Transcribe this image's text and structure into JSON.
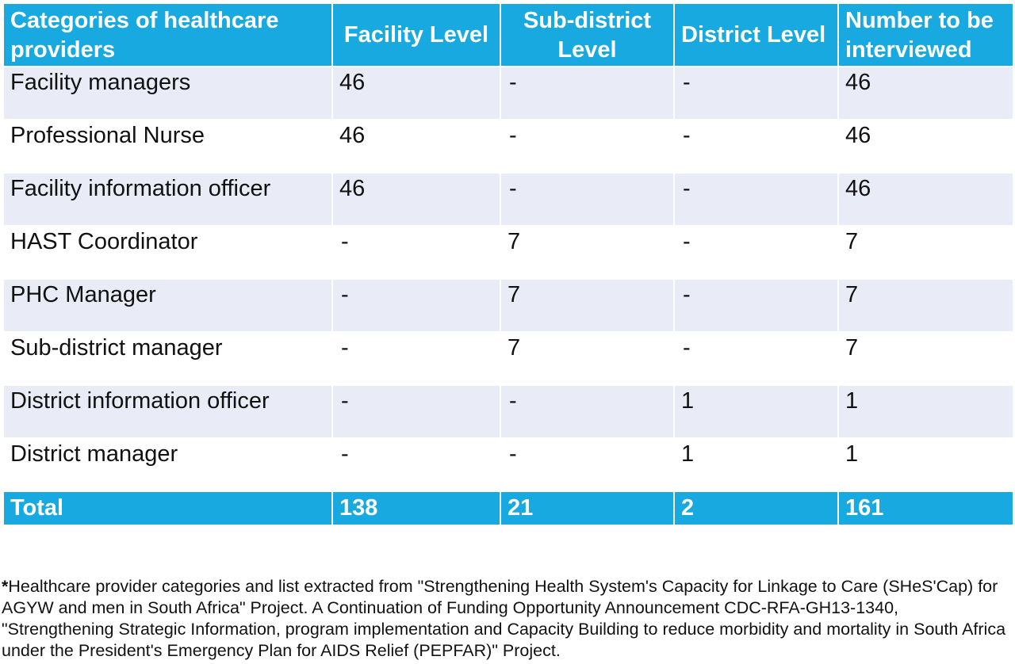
{
  "table": {
    "headers": [
      "Categories of healthcare providers",
      "Facility Level",
      "Sub-district Level",
      "District Level",
      "Number to be interviewed"
    ],
    "rows": [
      [
        "Facility managers",
        "46",
        "-",
        "-",
        "46"
      ],
      [
        "Professional Nurse",
        "46",
        "-",
        "-",
        "46"
      ],
      [
        "Facility information officer",
        "46",
        "-",
        "-",
        "46"
      ],
      [
        "HAST Coordinator",
        "-",
        "7",
        "-",
        "7"
      ],
      [
        "PHC Manager",
        "-",
        "7",
        "-",
        "7"
      ],
      [
        "Sub-district manager",
        "-",
        "7",
        "-",
        "7"
      ],
      [
        "District information officer",
        "-",
        "-",
        "1",
        "1"
      ],
      [
        "District manager",
        "-",
        "-",
        "1",
        "1"
      ]
    ],
    "total": [
      "Total",
      "138",
      "21",
      "2",
      "161"
    ]
  },
  "footnote": {
    "marker": "*",
    "text": "Healthcare provider categories and list extracted from \"Strengthening Health System's Capacity for Linkage to Care (SHeS'Cap) for AGYW and men in South Africa\" Project. A Continuation of Funding Opportunity Announcement CDC-RFA-GH13-1340, \"Strengthening Strategic Information, program implementation and Capacity Building to reduce morbidity and mortality in South Africa under the President's Emergency Plan for AIDS Relief (PEPFAR)\" Project."
  },
  "colors": {
    "header_bg": "#19a9e1",
    "band_bg": "#e9ecf6",
    "row_bg": "#ffffff",
    "text": "#111111"
  }
}
